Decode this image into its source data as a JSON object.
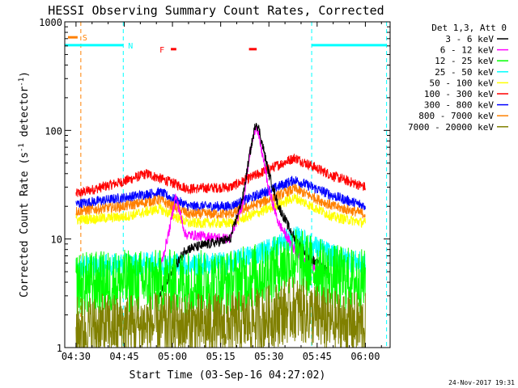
{
  "chart_data": {
    "type": "line",
    "title": "HESSI Observing Summary Count Rates, Corrected",
    "xlabel": "Start Time (03-Sep-16 04:27:02)",
    "ylabel_main": "Corrected Count Rate (s",
    "ylabel_sup1": "-1",
    "ylabel_mid": " detector",
    "ylabel_sup2": "-1",
    "ylabel_end": ")",
    "footer_date": "24-Nov-2017 19:31",
    "x_ticks": [
      {
        "label": "04:30",
        "t": 270
      },
      {
        "label": "04:45",
        "t": 285
      },
      {
        "label": "05:00",
        "t": 300
      },
      {
        "label": "05:15",
        "t": 315
      },
      {
        "label": "05:30",
        "t": 330
      },
      {
        "label": "05:45",
        "t": 345
      },
      {
        "label": "06:00",
        "t": 360
      }
    ],
    "x_range": [
      266.5,
      367.7
    ],
    "y_scale": "log",
    "y_range": [
      1,
      1000
    ],
    "y_tick_labels": [
      {
        "label": "1",
        "value": 1
      },
      {
        "label": "10",
        "value": 10
      },
      {
        "label": "100",
        "value": 100
      },
      {
        "label": "1000",
        "value": 1000
      }
    ],
    "legend": {
      "header": "Det 1,3, Att 0",
      "position": "right",
      "entries": [
        {
          "name": "3 - 6 keV",
          "color": "#000000"
        },
        {
          "name": "6 - 12 keV",
          "color": "#ff00ff"
        },
        {
          "name": "12 - 25 keV",
          "color": "#00ff00"
        },
        {
          "name": "25 - 50 keV",
          "color": "#00ffff"
        },
        {
          "name": "50 - 100 keV",
          "color": "#ffff00"
        },
        {
          "name": "100 - 300 keV",
          "color": "#ff0000"
        },
        {
          "name": "300 - 800 keV",
          "color": "#0000ff"
        },
        {
          "name": "800 - 7000 keV",
          "color": "#ff8000"
        },
        {
          "name": "7000 - 20000 keV",
          "color": "#808000"
        }
      ]
    },
    "annotations": {
      "saa": {
        "label": "S",
        "t_start": 267.5,
        "t_end": 270.5,
        "value": 720,
        "color": "#ff8000",
        "dashed_t": 271.5
      },
      "night": {
        "label": "N",
        "periods": [
          [
            266.5,
            284.7
          ],
          [
            343.3,
            366.6
          ]
        ],
        "value": 610,
        "color": "#00ffff"
      },
      "flare": {
        "label": "F",
        "periods": [
          [
            299.5,
            301.2
          ],
          [
            323.8,
            326.2
          ]
        ],
        "value": 560,
        "color": "#ff0000"
      }
    },
    "series": [
      {
        "color": "#ff0000",
        "t": [
          270,
          285,
          292,
          305,
          318,
          330,
          338,
          350,
          360
        ],
        "v": [
          26,
          34,
          40,
          29,
          30,
          44,
          56,
          38,
          30
        ]
      },
      {
        "color": "#0000ff",
        "t": [
          270,
          285,
          296,
          305,
          318,
          330,
          338,
          350,
          360
        ],
        "v": [
          21,
          24,
          27,
          20,
          20,
          28,
          35,
          25,
          20
        ]
      },
      {
        "color": "#ff8000",
        "t": [
          270,
          285,
          296,
          305,
          318,
          330,
          338,
          350,
          360
        ],
        "v": [
          18,
          20,
          23,
          17,
          17,
          23,
          29,
          20,
          17
        ]
      },
      {
        "color": "#ffff00",
        "t": [
          270,
          285,
          296,
          305,
          318,
          330,
          338,
          350,
          360
        ],
        "v": [
          15,
          16,
          19,
          14,
          14,
          19,
          24,
          16,
          14
        ]
      },
      {
        "color": "#00ffff",
        "t": [
          270,
          285,
          296,
          305,
          318,
          330,
          338,
          350,
          360
        ],
        "v": [
          5.5,
          5.8,
          6,
          5.8,
          6,
          8,
          10.5,
          7,
          5.8
        ]
      },
      {
        "color": "#ff00ff",
        "t": [
          296,
          299,
          301,
          304,
          318,
          322,
          324,
          326,
          328,
          330,
          333,
          338,
          342,
          348
        ],
        "v": [
          5,
          12,
          25,
          11,
          10,
          22,
          60,
          115,
          60,
          28,
          14,
          8,
          6,
          5
        ]
      },
      {
        "color": "#000000",
        "t": [
          296,
          300,
          304,
          318,
          322,
          324,
          326,
          327,
          330,
          333,
          338,
          342,
          348
        ],
        "v": [
          3,
          5,
          8,
          10,
          25,
          60,
          120,
          100,
          40,
          20,
          10,
          7,
          5
        ]
      },
      {
        "color": "#00ff00",
        "t": [
          270,
          285,
          300,
          318,
          330,
          338,
          350,
          360
        ],
        "v": [
          3.8,
          4,
          4,
          4,
          5,
          6.5,
          4.5,
          4
        ]
      },
      {
        "color": "#808000",
        "t": [
          270,
          285,
          300,
          318,
          330,
          338,
          350,
          360
        ],
        "v": [
          1.5,
          1.6,
          1.6,
          1.6,
          1.9,
          2.3,
          1.7,
          1.6
        ]
      }
    ]
  }
}
